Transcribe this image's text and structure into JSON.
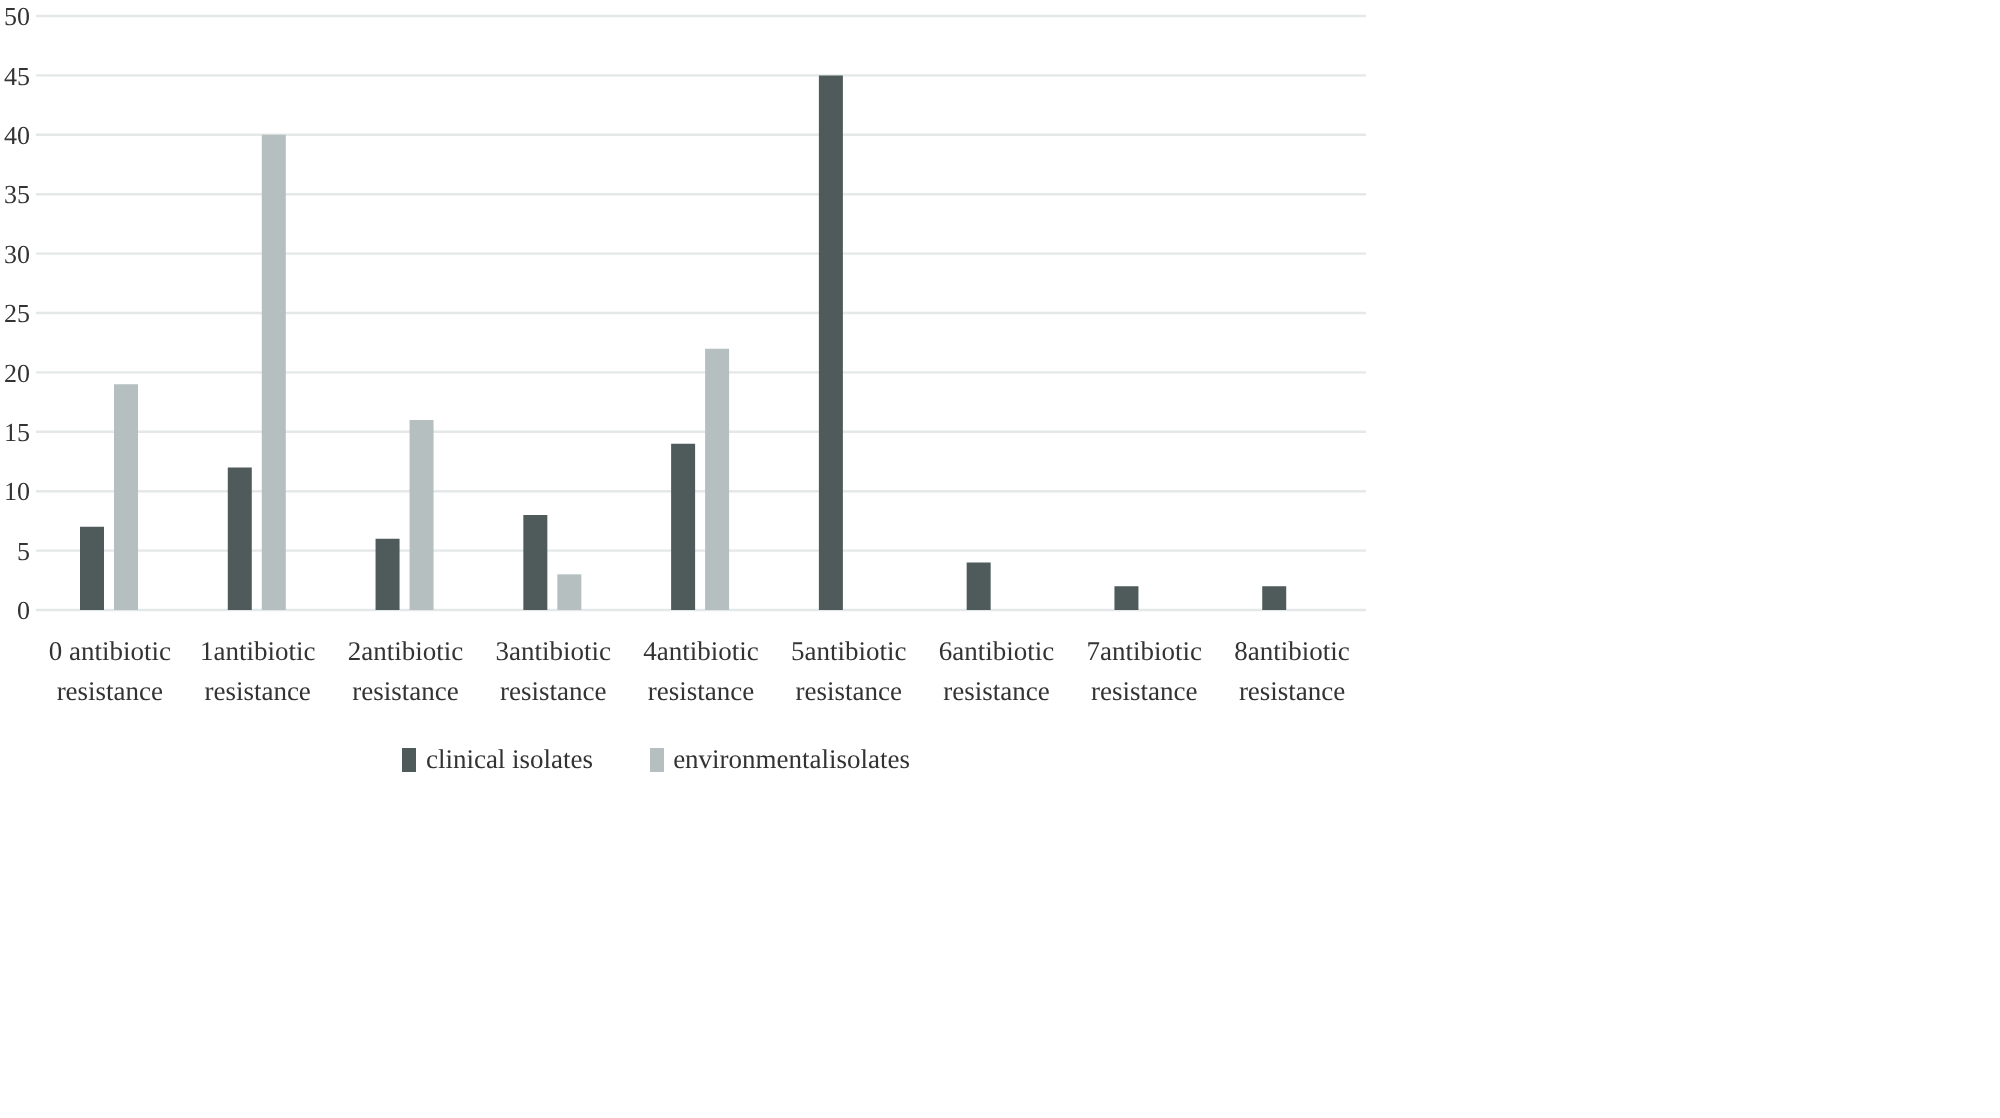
{
  "chart_data": {
    "type": "bar",
    "categories": [
      "0 antibiotic resistance",
      "1antibiotic resistance",
      "2antibiotic resistance",
      "3antibiotic resistance",
      "4antibiotic resistance",
      "5antibiotic resistance",
      "6antibiotic resistance",
      "7antibiotic resistance",
      "8antibiotic resistance"
    ],
    "series": [
      {
        "name": "clinical isolates",
        "color": "#4f5a5b",
        "values": [
          7,
          12,
          6,
          8,
          14,
          45,
          4,
          2,
          2
        ]
      },
      {
        "name": "environmentalisolates",
        "color": "#b5bfbf",
        "values": [
          19,
          40,
          16,
          3,
          22,
          null,
          null,
          null,
          null
        ]
      }
    ],
    "ylim": [
      0,
      50
    ],
    "yticks": [
      0,
      5,
      10,
      15,
      20,
      25,
      30,
      35,
      40,
      45,
      50
    ],
    "grid": "y",
    "legend": "bottom"
  }
}
